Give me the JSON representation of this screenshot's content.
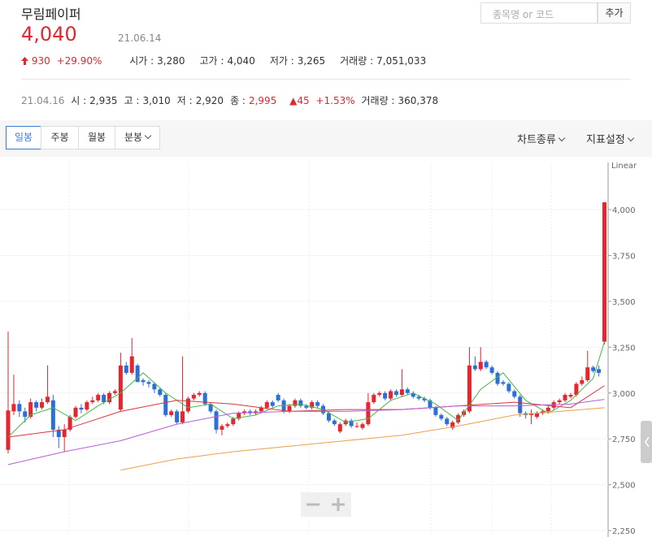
{
  "header": {
    "name": "무림페이퍼",
    "price": "4,040",
    "date": "21.06.14",
    "change": "930",
    "change_pct": "+29.90%",
    "stats": [
      {
        "label": "시가 :",
        "value": "3,280"
      },
      {
        "label": "고가 :",
        "value": "4,040"
      },
      {
        "label": "저가 :",
        "value": "3,265"
      },
      {
        "label": "거래량 :",
        "value": "7,051,033"
      }
    ]
  },
  "search": {
    "placeholder": "종목명 or 코드",
    "button": "추가"
  },
  "history": {
    "date": "21.04.16",
    "stats": [
      {
        "label": "시 :",
        "value": "2,935"
      },
      {
        "label": "고 :",
        "value": "3,010"
      },
      {
        "label": "저 :",
        "value": "2,920"
      },
      {
        "label": "종 :",
        "value": "2,995"
      }
    ],
    "change": "▲45",
    "change_pct": "+1.53%",
    "volume_label": "거래량 :",
    "volume": "360,378"
  },
  "tabs": [
    "일봉",
    "주봉",
    "월봉",
    "분봉"
  ],
  "menus": [
    "차트종류",
    "지표설정"
  ],
  "chart_data": {
    "type": "candlestick",
    "scale_label": "Linear",
    "up_color": "#e4262e",
    "down_color": "#2c6fd6",
    "grid": true,
    "ylim": [
      2215,
      4257
    ],
    "yticks": [
      {
        "value": 2250,
        "label": "2,250"
      },
      {
        "value": 2500,
        "label": "2,500"
      },
      {
        "value": 2750,
        "label": "2,750"
      },
      {
        "value": 3000,
        "label": "3,000"
      },
      {
        "value": 3250,
        "label": "3,250"
      },
      {
        "value": 3500,
        "label": "3,500"
      },
      {
        "value": 3750,
        "label": "3,750"
      },
      {
        "value": 4000,
        "label": "4,000"
      }
    ],
    "open": [
      2690,
      2900,
      2940,
      2900,
      2870,
      2950,
      2920,
      2950,
      2960,
      2800,
      2760,
      2800,
      2870,
      2920,
      2910,
      2950,
      2960,
      2990,
      2950,
      3000,
      2910,
      3150,
      3110,
      3150,
      3070,
      3060,
      3050,
      3020,
      2990,
      2880,
      2900,
      2840,
      2900,
      2970,
      2990,
      3000,
      2940,
      2900,
      2800,
      2820,
      2830,
      2860,
      2890,
      2900,
      2890,
      2900,
      2920,
      2950,
      2990,
      2960,
      2900,
      2930,
      2960,
      2930,
      2920,
      2950,
      2930,
      2890,
      2850,
      2790,
      2830,
      2850,
      2820,
      2810,
      2830,
      2950,
      2990,
      3000,
      2970,
      3010,
      2990,
      3020,
      3000,
      2980,
      2970,
      2960,
      2920,
      2880,
      2860,
      2810,
      2840,
      2880,
      2900,
      3150,
      3130,
      3170,
      3140,
      3110,
      3060,
      3050,
      3010,
      2980,
      2890,
      2880,
      2870,
      2890,
      2900,
      2920,
      2950,
      2960,
      2980,
      2990,
      3050,
      3070,
      3140,
      3130,
      3280
    ],
    "high": [
      3335,
      3100,
      2960,
      2920,
      2970,
      2960,
      2970,
      3150,
      2990,
      2820,
      2830,
      2880,
      2930,
      2940,
      2960,
      2980,
      3000,
      3000,
      3010,
      3020,
      3220,
      3170,
      3300,
      3160,
      3080,
      3070,
      3060,
      3030,
      3000,
      2910,
      2910,
      3200,
      2980,
      3000,
      3010,
      3010,
      2950,
      2910,
      2830,
      2840,
      2870,
      2900,
      2910,
      2910,
      2910,
      2930,
      2960,
      2960,
      3000,
      2970,
      2940,
      2970,
      2970,
      2940,
      2960,
      2960,
      2940,
      2900,
      2860,
      2840,
      2860,
      2860,
      2840,
      2840,
      3000,
      3000,
      3010,
      3010,
      3020,
      3020,
      3130,
      3030,
      3010,
      2990,
      2980,
      2970,
      2930,
      2890,
      2870,
      2850,
      2890,
      2910,
      3250,
      3200,
      3250,
      3180,
      3150,
      3120,
      3070,
      3060,
      3020,
      2990,
      2900,
      2910,
      2900,
      2910,
      2930,
      2960,
      2970,
      3000,
      3000,
      3060,
      3090,
      3230,
      3150,
      3150,
      4040
    ],
    "low": [
      2670,
      2880,
      2870,
      2840,
      2860,
      2900,
      2910,
      2940,
      2760,
      2700,
      2680,
      2790,
      2860,
      2890,
      2900,
      2940,
      2950,
      2940,
      2940,
      2990,
      2900,
      3100,
      3100,
      3060,
      3040,
      3030,
      3000,
      2980,
      2870,
      2870,
      2830,
      2830,
      2890,
      2960,
      2980,
      2930,
      2890,
      2780,
      2770,
      2810,
      2820,
      2850,
      2880,
      2880,
      2880,
      2890,
      2910,
      2920,
      2950,
      2890,
      2890,
      2920,
      2920,
      2910,
      2910,
      2920,
      2880,
      2840,
      2820,
      2780,
      2820,
      2810,
      2810,
      2800,
      2820,
      2940,
      2980,
      2960,
      2960,
      2980,
      2980,
      2990,
      2970,
      2960,
      2950,
      2910,
      2870,
      2850,
      2820,
      2800,
      2830,
      2870,
      2890,
      3120,
      3120,
      3130,
      3100,
      3040,
      3040,
      3000,
      2970,
      2870,
      2860,
      2830,
      2860,
      2880,
      2890,
      2910,
      2940,
      2950,
      2970,
      2980,
      3040,
      3060,
      3110,
      3090,
      3265
    ],
    "close": [
      2905,
      2940,
      2900,
      2870,
      2950,
      2920,
      2950,
      2980,
      2800,
      2760,
      2800,
      2870,
      2920,
      2910,
      2950,
      2960,
      2990,
      2950,
      3000,
      3010,
      3150,
      3110,
      3200,
      3060,
      3060,
      3050,
      3020,
      2990,
      2880,
      2900,
      2840,
      2900,
      2970,
      2990,
      3000,
      2940,
      2900,
      2800,
      2820,
      2830,
      2860,
      2890,
      2900,
      2890,
      2900,
      2920,
      2950,
      2930,
      2960,
      2900,
      2930,
      2960,
      2930,
      2920,
      2950,
      2930,
      2890,
      2850,
      2830,
      2830,
      2850,
      2820,
      2820,
      2830,
      2950,
      2990,
      3000,
      2970,
      3010,
      2990,
      3020,
      3000,
      2980,
      2970,
      2960,
      2920,
      2880,
      2860,
      2830,
      2840,
      2880,
      2900,
      3150,
      3130,
      3170,
      3140,
      3110,
      3050,
      3050,
      3010,
      2980,
      2890,
      2880,
      2890,
      2890,
      2900,
      2920,
      2950,
      2960,
      2990,
      2990,
      3050,
      3070,
      3140,
      3120,
      3110,
      4040
    ],
    "series": [
      {
        "color": "#44b84a",
        "x": [
          0,
          4,
          8,
          12,
          16,
          20,
          24,
          28,
          32,
          36,
          40,
          44,
          48,
          52,
          56,
          60,
          64,
          68,
          72,
          76,
          80,
          84,
          88,
          92,
          96,
          100,
          104,
          106
        ],
        "values": [
          2760,
          2880,
          2920,
          2850,
          2930,
          3000,
          3110,
          3000,
          2920,
          2940,
          2860,
          2880,
          2930,
          2940,
          2910,
          2840,
          2860,
          2960,
          3000,
          2940,
          2850,
          3020,
          3110,
          2960,
          2890,
          2960,
          3080,
          3280
        ]
      },
      {
        "color": "#d9363e",
        "x": [
          0,
          10,
          20,
          30,
          40,
          50,
          60,
          70,
          80,
          90,
          100,
          106
        ],
        "values": [
          2760,
          2800,
          2900,
          2960,
          2940,
          2900,
          2910,
          2910,
          2930,
          2950,
          2920,
          3040
        ]
      },
      {
        "color": "#b25fd6",
        "x": [
          0,
          10,
          20,
          30,
          40,
          50,
          60,
          70,
          80,
          90,
          100,
          106
        ],
        "values": [
          2610,
          2680,
          2740,
          2830,
          2890,
          2900,
          2900,
          2910,
          2930,
          2930,
          2940,
          2965
        ]
      },
      {
        "color": "#e8a04a",
        "x": [
          20,
          30,
          40,
          50,
          60,
          70,
          80,
          90,
          100,
          106
        ],
        "values": [
          2580,
          2640,
          2680,
          2710,
          2740,
          2770,
          2820,
          2880,
          2905,
          2920
        ]
      }
    ]
  }
}
